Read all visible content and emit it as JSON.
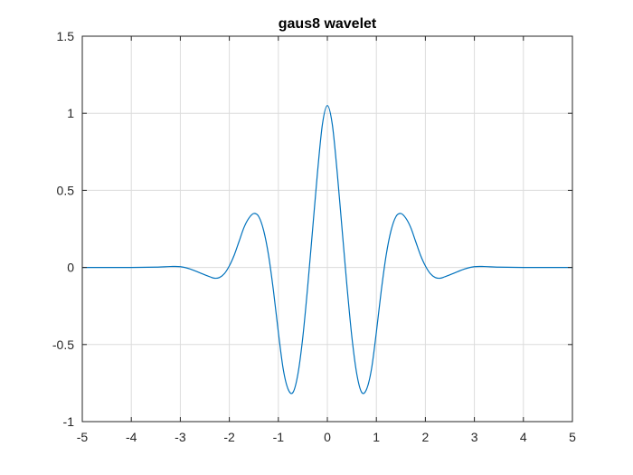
{
  "chart_data": {
    "type": "line",
    "title": "gaus8 wavelet",
    "xlabel": "",
    "ylabel": "",
    "xlim": [
      -5,
      5
    ],
    "ylim": [
      -1,
      1.5
    ],
    "x_ticks": [
      -5,
      -4,
      -3,
      -2,
      -1,
      0,
      1,
      2,
      3,
      4,
      5
    ],
    "y_ticks": [
      -1,
      -0.5,
      0,
      0.5,
      1,
      1.5
    ],
    "x_tick_labels": [
      "-5",
      "-4",
      "-3",
      "-2",
      "-1",
      "0",
      "1",
      "2",
      "3",
      "4",
      "5"
    ],
    "y_tick_labels": [
      "-1",
      "-0.5",
      "0",
      "0.5",
      "1",
      "1.5"
    ],
    "grid": true,
    "series": [
      {
        "color": "#0072BD",
        "x": [
          -5.0,
          -4.5,
          -4.0,
          -3.5,
          -3.2,
          -3.0,
          -2.8,
          -2.6,
          -2.4,
          -2.3,
          -2.2,
          -2.1,
          -2.0,
          -1.9,
          -1.8,
          -1.7,
          -1.6,
          -1.5,
          -1.4,
          -1.3,
          -1.2,
          -1.1,
          -1.0,
          -0.9,
          -0.8,
          -0.7,
          -0.6,
          -0.5,
          -0.4,
          -0.3,
          -0.2,
          -0.1,
          0.0,
          0.1,
          0.2,
          0.3,
          0.4,
          0.5,
          0.6,
          0.7,
          0.8,
          0.9,
          1.0,
          1.1,
          1.2,
          1.3,
          1.4,
          1.5,
          1.6,
          1.7,
          1.8,
          1.9,
          2.0,
          2.1,
          2.2,
          2.3,
          2.4,
          2.6,
          2.8,
          3.0,
          3.2,
          3.5,
          4.0,
          4.5,
          5.0
        ],
        "y": [
          0.0,
          0.0,
          0.0,
          0.002,
          0.006,
          0.005,
          -0.01,
          -0.035,
          -0.06,
          -0.07,
          -0.065,
          -0.04,
          0.01,
          0.08,
          0.17,
          0.26,
          0.32,
          0.35,
          0.33,
          0.24,
          0.08,
          -0.15,
          -0.42,
          -0.66,
          -0.79,
          -0.81,
          -0.69,
          -0.45,
          -0.12,
          0.25,
          0.62,
          0.93,
          1.05,
          0.93,
          0.62,
          0.25,
          -0.12,
          -0.45,
          -0.69,
          -0.81,
          -0.79,
          -0.66,
          -0.42,
          -0.15,
          0.08,
          0.24,
          0.33,
          0.35,
          0.32,
          0.26,
          0.17,
          0.08,
          0.01,
          -0.04,
          -0.065,
          -0.07,
          -0.06,
          -0.035,
          -0.01,
          0.005,
          0.006,
          0.002,
          0.0,
          0.0,
          0.0
        ]
      }
    ]
  }
}
